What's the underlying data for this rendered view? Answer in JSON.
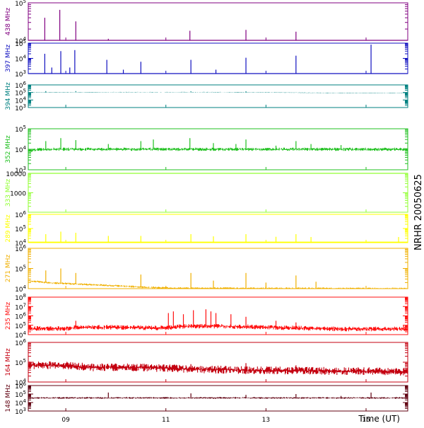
{
  "chart_data": {
    "type": "line",
    "title": "NRHR 20050625",
    "xlabel": "Time (UT)",
    "x_domain": [
      "08:15",
      "15:50"
    ],
    "x_ticks": [
      "09",
      "11",
      "13",
      "15"
    ],
    "x_tick_hours": [
      9,
      11,
      13,
      15
    ],
    "panels": [
      {
        "name": "438 MHz",
        "color": "#800080",
        "ylog": true,
        "ylim": [
          10000,
          100000
        ],
        "tick_labels": [
          "10^4",
          "10^5"
        ],
        "tick_values": [
          10000,
          100000
        ],
        "baseline": 10000,
        "spikes": [
          [
            8.58,
            40000
          ],
          [
            8.88,
            65000
          ],
          [
            9.2,
            32000
          ],
          [
            9.85,
            11000
          ],
          [
            11.48,
            18000
          ],
          [
            12.6,
            19000
          ],
          [
            13.6,
            17000
          ]
        ]
      },
      {
        "name": "397 MHz",
        "color": "#1010c0",
        "ylog": true,
        "ylim": [
          1000,
          100000
        ],
        "tick_labels": [
          "10^3",
          "10^4",
          "10^5"
        ],
        "tick_values": [
          1000,
          10000,
          100000
        ],
        "baseline": 1000,
        "spikes": [
          [
            8.58,
            20000
          ],
          [
            8.72,
            2500
          ],
          [
            8.9,
            30000
          ],
          [
            9.08,
            2500
          ],
          [
            9.18,
            35000
          ],
          [
            9.82,
            8000
          ],
          [
            10.15,
            1800
          ],
          [
            10.5,
            6000
          ],
          [
            11.5,
            8000
          ],
          [
            12.0,
            1800
          ],
          [
            12.6,
            11000
          ],
          [
            13.6,
            15000
          ],
          [
            15.1,
            80000
          ]
        ]
      },
      {
        "name": "394 MHz",
        "color": "#008080",
        "ylog": true,
        "ylim": [
          1000,
          1000000
        ],
        "tick_labels": [
          "10^3",
          "10^4",
          "10^5",
          "10^6"
        ],
        "tick_values": [
          1000,
          10000,
          100000,
          1000000
        ],
        "level": [
          [
            8.25,
            100000
          ],
          [
            10.0,
            110000
          ],
          [
            12.0,
            110000
          ],
          [
            13.5,
            95000
          ],
          [
            14.5,
            85000
          ],
          [
            15.8,
            80000
          ]
        ],
        "noise": 0.03,
        "spikes": [
          [
            8.6,
            150000
          ],
          [
            9.2,
            150000
          ],
          [
            11.5,
            140000
          ],
          [
            12.6,
            140000
          ]
        ]
      },
      {
        "name": "352 MHz",
        "color": "#20c020",
        "ylog": true,
        "ylim": [
          1000,
          100000
        ],
        "tick_labels": [
          "10^3",
          "10^4",
          "10^5"
        ],
        "tick_values": [
          1000,
          10000,
          100000
        ],
        "level": [
          [
            8.25,
            8500
          ],
          [
            8.5,
            10000
          ],
          [
            10.0,
            10000
          ],
          [
            12.0,
            10000
          ],
          [
            15.8,
            10000
          ]
        ],
        "noise": 0.08,
        "spikes": [
          [
            8.6,
            25000
          ],
          [
            8.9,
            35000
          ],
          [
            9.2,
            28000
          ],
          [
            9.85,
            18000
          ],
          [
            10.5,
            25000
          ],
          [
            10.75,
            30000
          ],
          [
            11.48,
            35000
          ],
          [
            11.95,
            20000
          ],
          [
            12.4,
            18000
          ],
          [
            12.6,
            30000
          ],
          [
            13.2,
            15000
          ],
          [
            13.6,
            25000
          ],
          [
            13.9,
            18000
          ],
          [
            14.5,
            16000
          ]
        ]
      },
      {
        "name": "333 MHz",
        "color": "#90ff30",
        "ylog": true,
        "ylim": [
          100,
          10000
        ],
        "tick_labels": [
          "1000",
          "10000"
        ],
        "tick_values": [
          1000,
          10000
        ],
        "tick_label_text": [
          "1000",
          "10000"
        ],
        "flat_at": 10000
      },
      {
        "name": "289 MHz",
        "color": "#ffff00",
        "ylog": true,
        "ylim": [
          10000,
          1000000
        ],
        "tick_labels": [
          "10^4",
          "10^5",
          "10^6"
        ],
        "tick_values": [
          10000,
          100000,
          1000000
        ],
        "baseline": 11000,
        "spikes": [
          [
            8.6,
            40000
          ],
          [
            8.9,
            60000
          ],
          [
            9.2,
            50000
          ],
          [
            9.85,
            30000
          ],
          [
            10.5,
            30000
          ],
          [
            11.5,
            40000
          ],
          [
            11.95,
            28000
          ],
          [
            12.6,
            40000
          ],
          [
            13.2,
            26000
          ],
          [
            13.6,
            40000
          ],
          [
            13.9,
            25000
          ],
          [
            15.65,
            25000
          ]
        ]
      },
      {
        "name": "271 MHz",
        "color": "#f0b000",
        "ylog": true,
        "ylim": [
          10000,
          1000000
        ],
        "tick_labels": [
          "10^4",
          "10^5",
          "10^6"
        ],
        "tick_values": [
          10000,
          100000,
          1000000
        ],
        "level": [
          [
            8.25,
            25000
          ],
          [
            8.6,
            20000
          ],
          [
            9.2,
            17000
          ],
          [
            10.0,
            14000
          ],
          [
            10.5,
            12000
          ],
          [
            11.2,
            10500
          ],
          [
            15.8,
            10000
          ]
        ],
        "noise": 0.05,
        "spikes": [
          [
            8.6,
            80000
          ],
          [
            8.9,
            100000
          ],
          [
            9.2,
            60000
          ],
          [
            10.5,
            50000
          ],
          [
            11.5,
            60000
          ],
          [
            11.95,
            25000
          ],
          [
            12.6,
            60000
          ],
          [
            13.6,
            45000
          ],
          [
            13.0,
            20000
          ],
          [
            14.0,
            22000
          ]
        ]
      },
      {
        "name": "235 MHz",
        "color": "#ff1010",
        "ylog": true,
        "ylim": [
          10000,
          100000000
        ],
        "tick_labels": [
          "10^4",
          "10^5",
          "10^6",
          "10^7",
          "10^8"
        ],
        "tick_values": [
          10000,
          100000,
          1000000,
          10000000,
          100000000
        ],
        "level": [
          [
            8.25,
            45000
          ],
          [
            9.0,
            45000
          ],
          [
            9.2,
            60000
          ],
          [
            10.0,
            60000
          ],
          [
            10.9,
            50000
          ],
          [
            11.4,
            80000
          ],
          [
            12.2,
            80000
          ],
          [
            12.6,
            70000
          ],
          [
            13.6,
            50000
          ],
          [
            14.5,
            40000
          ],
          [
            15.8,
            40000
          ]
        ],
        "noise": 0.25,
        "spikes": [
          [
            9.2,
            300000
          ],
          [
            11.05,
            2000000
          ],
          [
            11.15,
            3000000
          ],
          [
            11.35,
            1500000
          ],
          [
            11.55,
            4000000
          ],
          [
            11.8,
            5000000
          ],
          [
            11.9,
            3000000
          ],
          [
            12.0,
            2000000
          ],
          [
            12.3,
            1500000
          ],
          [
            12.6,
            800000
          ],
          [
            13.2,
            300000
          ],
          [
            13.6,
            200000
          ],
          [
            15.75,
            100000
          ]
        ]
      },
      {
        "name": "164 MHz",
        "color": "#c40010",
        "ylog": true,
        "ylim": [
          10000,
          1000000
        ],
        "tick_labels": [
          "10^4",
          "10^5",
          "10^6"
        ],
        "tick_values": [
          10000,
          100000,
          1000000
        ],
        "level": [
          [
            8.25,
            70000
          ],
          [
            9.0,
            70000
          ],
          [
            9.5,
            55000
          ],
          [
            10.5,
            55000
          ],
          [
            11.5,
            45000
          ],
          [
            12.5,
            40000
          ],
          [
            13.5,
            38000
          ],
          [
            15.0,
            35000
          ],
          [
            15.8,
            33000
          ]
        ],
        "noise": 0.2,
        "spikes": [
          [
            11.5,
            80000
          ],
          [
            12.6,
            90000
          ],
          [
            13.2,
            60000
          ],
          [
            13.6,
            70000
          ],
          [
            14.0,
            50000
          ]
        ]
      },
      {
        "name": "148 MHz",
        "color": "#600010",
        "ylog": true,
        "ylim": [
          1000,
          1000000
        ],
        "tick_labels": [
          "10^3",
          "10^4",
          "10^5",
          "10^6"
        ],
        "tick_values": [
          1000,
          10000,
          100000,
          1000000
        ],
        "level": [
          [
            8.25,
            35000
          ],
          [
            15.8,
            35000
          ]
        ],
        "noise": 0.1,
        "spikes": [
          [
            9.85,
            150000
          ],
          [
            11.5,
            120000
          ],
          [
            12.6,
            80000
          ],
          [
            13.6,
            100000
          ],
          [
            14.5,
            60000
          ],
          [
            15.1,
            150000
          ]
        ]
      }
    ]
  }
}
